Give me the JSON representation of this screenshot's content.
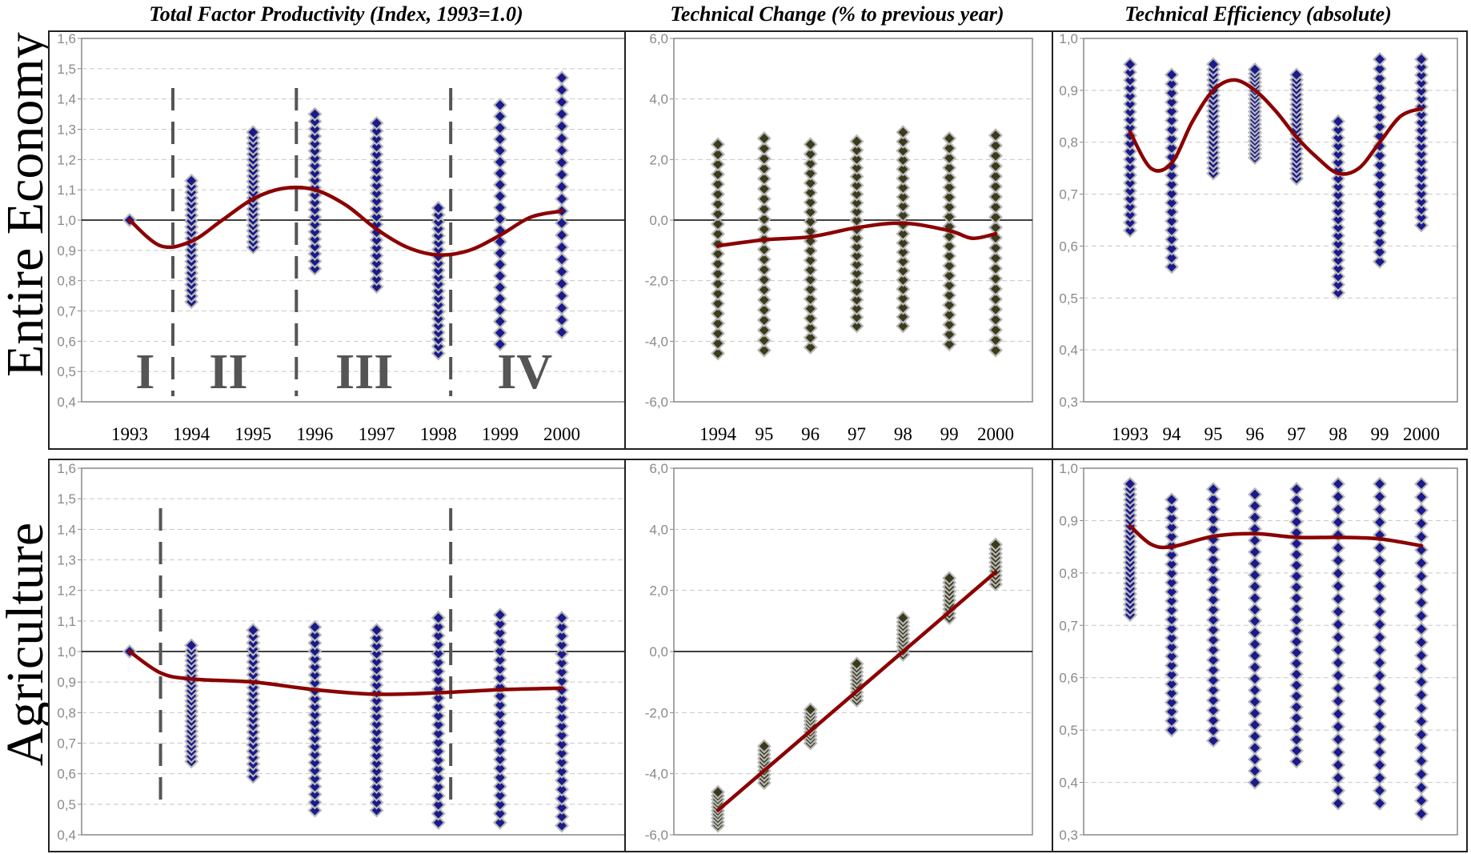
{
  "column_titles": [
    "Total Factor Productivity (Index, 1993=1.0)",
    "Technical Change (% to previous year)",
    "Technical Efficiency (absolute)"
  ],
  "row_labels": [
    "Entire Economy",
    "Agriculture"
  ],
  "colors": {
    "point": "#1a1a8c",
    "point_tc": "#3b3b1c",
    "halo": "#b8b8b8",
    "trend": "#8b0000",
    "grid": "#c8c8c8",
    "dash": "#555555"
  },
  "chart_data": [
    {
      "id": "ee-tfp",
      "type": "scatter",
      "row": "Entire Economy",
      "title": "Total Factor Productivity (Index, 1993=1.0)",
      "x_tick_labels": [
        "1993",
        "1994",
        "1995",
        "1996",
        "1997",
        "1998",
        "1999",
        "2000"
      ],
      "y_tick_labels": [
        "0,4",
        "0,5",
        "0,6",
        "0,7",
        "0,8",
        "0,9",
        "1,0",
        "1,1",
        "1,2",
        "1,3",
        "1,4",
        "1,5",
        "1,6"
      ],
      "ylim": [
        0.4,
        1.6
      ],
      "reference_line": 1.0,
      "grid": true,
      "period_labels": [
        "I",
        "II",
        "III",
        "IV"
      ],
      "period_breaks": [
        1993.7,
        1995.7,
        1998.2
      ],
      "ranges": [
        [
          1993,
          1.0,
          1.0
        ],
        [
          1994,
          0.73,
          1.13
        ],
        [
          1995,
          0.91,
          1.29
        ],
        [
          1996,
          0.84,
          1.35
        ],
        [
          1997,
          0.78,
          1.32
        ],
        [
          1998,
          0.56,
          1.04
        ],
        [
          1999,
          0.59,
          1.38
        ],
        [
          2000,
          0.63,
          1.47
        ]
      ],
      "trend": [
        [
          1993,
          1.0
        ],
        [
          1993.5,
          0.915
        ],
        [
          1994,
          0.93
        ],
        [
          1994.5,
          1.0
        ],
        [
          1995,
          1.07
        ],
        [
          1995.5,
          1.105
        ],
        [
          1996,
          1.1
        ],
        [
          1996.5,
          1.05
        ],
        [
          1997,
          0.97
        ],
        [
          1997.5,
          0.91
        ],
        [
          1998,
          0.885
        ],
        [
          1998.5,
          0.9
        ],
        [
          1999,
          0.95
        ],
        [
          1999.5,
          1.01
        ],
        [
          2000,
          1.03
        ]
      ]
    },
    {
      "id": "ee-tc",
      "type": "scatter",
      "row": "Entire Economy",
      "title": "Technical Change (% to previous year)",
      "x_tick_labels": [
        "1994",
        "95",
        "96",
        "97",
        "98",
        "99",
        "2000"
      ],
      "y_tick_labels": [
        "-6,0",
        "-4,0",
        "-2,0",
        "0,0",
        "2,0",
        "4,0",
        "6,0"
      ],
      "ylim": [
        -6,
        6
      ],
      "reference_line": 0,
      "grid": true,
      "ranges": [
        [
          1994,
          -4.4,
          2.5
        ],
        [
          1995,
          -4.3,
          2.7
        ],
        [
          1996,
          -4.2,
          2.5
        ],
        [
          1997,
          -3.5,
          2.6
        ],
        [
          1998,
          -3.5,
          2.9
        ],
        [
          1999,
          -4.1,
          2.7
        ],
        [
          2000,
          -4.3,
          2.8
        ]
      ],
      "trend": [
        [
          1994,
          -0.85
        ],
        [
          1995,
          -0.65
        ],
        [
          1996,
          -0.55
        ],
        [
          1997,
          -0.25
        ],
        [
          1998,
          -0.1
        ],
        [
          1999,
          -0.35
        ],
        [
          1999.5,
          -0.6
        ],
        [
          2000,
          -0.45
        ]
      ]
    },
    {
      "id": "ee-te",
      "type": "scatter",
      "row": "Entire Economy",
      "title": "Technical Efficiency (absolute)",
      "x_tick_labels": [
        "1993",
        "94",
        "95",
        "96",
        "97",
        "98",
        "99",
        "2000"
      ],
      "y_tick_labels": [
        "0,3",
        "0,4",
        "0,5",
        "0,6",
        "0,7",
        "0,8",
        "0,9",
        "1,0"
      ],
      "ylim": [
        0.3,
        1.0
      ],
      "grid": true,
      "ranges": [
        [
          1993,
          0.63,
          0.95
        ],
        [
          1994,
          0.56,
          0.93
        ],
        [
          1995,
          0.74,
          0.95
        ],
        [
          1996,
          0.77,
          0.94
        ],
        [
          1997,
          0.73,
          0.93
        ],
        [
          1998,
          0.51,
          0.84
        ],
        [
          1999,
          0.57,
          0.96
        ],
        [
          2000,
          0.64,
          0.96
        ]
      ],
      "trend": [
        [
          1993,
          0.82
        ],
        [
          1993.5,
          0.75
        ],
        [
          1994,
          0.76
        ],
        [
          1994.5,
          0.84
        ],
        [
          1995,
          0.9
        ],
        [
          1995.5,
          0.92
        ],
        [
          1996,
          0.9
        ],
        [
          1996.5,
          0.86
        ],
        [
          1997,
          0.81
        ],
        [
          1997.5,
          0.77
        ],
        [
          1998,
          0.74
        ],
        [
          1998.5,
          0.75
        ],
        [
          1999,
          0.8
        ],
        [
          1999.5,
          0.85
        ],
        [
          2000,
          0.865
        ]
      ]
    },
    {
      "id": "ag-tfp",
      "type": "scatter",
      "row": "Agriculture",
      "title": "Total Factor Productivity (Index, 1993=1.0)",
      "y_tick_labels": [
        "0,4",
        "0,5",
        "0,6",
        "0,7",
        "0,8",
        "0,9",
        "1,0",
        "1,1",
        "1,2",
        "1,3",
        "1,4",
        "1,5",
        "1,6"
      ],
      "ylim": [
        0.4,
        1.6
      ],
      "reference_line": 1.0,
      "grid": true,
      "period_breaks": [
        1993.5,
        1998.2
      ],
      "ranges": [
        [
          1993,
          1.0,
          1.0
        ],
        [
          1994,
          0.64,
          1.02
        ],
        [
          1995,
          0.59,
          1.07
        ],
        [
          1996,
          0.48,
          1.08
        ],
        [
          1997,
          0.48,
          1.07
        ],
        [
          1998,
          0.44,
          1.11
        ],
        [
          1999,
          0.44,
          1.12
        ],
        [
          2000,
          0.43,
          1.11
        ]
      ],
      "trend": [
        [
          1993,
          1.0
        ],
        [
          1993.5,
          0.93
        ],
        [
          1994,
          0.91
        ],
        [
          1995,
          0.9
        ],
        [
          1996,
          0.875
        ],
        [
          1997,
          0.86
        ],
        [
          1998,
          0.865
        ],
        [
          1999,
          0.875
        ],
        [
          2000,
          0.88
        ]
      ]
    },
    {
      "id": "ag-tc",
      "type": "scatter",
      "row": "Agriculture",
      "title": "Technical Change (% to previous year)",
      "y_tick_labels": [
        "-6,0",
        "-4,0",
        "-2,0",
        "0,0",
        "2,0",
        "4,0",
        "6,0"
      ],
      "ylim": [
        -6,
        6
      ],
      "reference_line": 0,
      "grid": true,
      "ranges": [
        [
          1994,
          -5.7,
          -4.6
        ],
        [
          1995,
          -4.3,
          -3.1
        ],
        [
          1996,
          -3.0,
          -1.9
        ],
        [
          1997,
          -1.6,
          -0.4
        ],
        [
          1998,
          -0.1,
          1.1
        ],
        [
          1999,
          1.1,
          2.4
        ],
        [
          2000,
          2.2,
          3.5
        ]
      ],
      "trend": [
        [
          1994,
          -5.2
        ],
        [
          2000,
          2.6
        ]
      ]
    },
    {
      "id": "ag-te",
      "type": "scatter",
      "row": "Agriculture",
      "title": "Technical Efficiency (absolute)",
      "y_tick_labels": [
        "0,3",
        "0,4",
        "0,5",
        "0,6",
        "0,7",
        "0,8",
        "0,9",
        "1,0"
      ],
      "ylim": [
        0.3,
        1.0
      ],
      "grid": true,
      "ranges": [
        [
          1993,
          0.72,
          0.97
        ],
        [
          1994,
          0.5,
          0.94
        ],
        [
          1995,
          0.48,
          0.96
        ],
        [
          1996,
          0.4,
          0.95
        ],
        [
          1997,
          0.44,
          0.96
        ],
        [
          1998,
          0.36,
          0.97
        ],
        [
          1999,
          0.36,
          0.97
        ],
        [
          2000,
          0.34,
          0.97
        ]
      ],
      "trend": [
        [
          1993,
          0.89
        ],
        [
          1993.5,
          0.855
        ],
        [
          1994,
          0.85
        ],
        [
          1995,
          0.87
        ],
        [
          1996,
          0.875
        ],
        [
          1997,
          0.868
        ],
        [
          1998,
          0.868
        ],
        [
          1999,
          0.865
        ],
        [
          2000,
          0.852
        ]
      ]
    }
  ]
}
